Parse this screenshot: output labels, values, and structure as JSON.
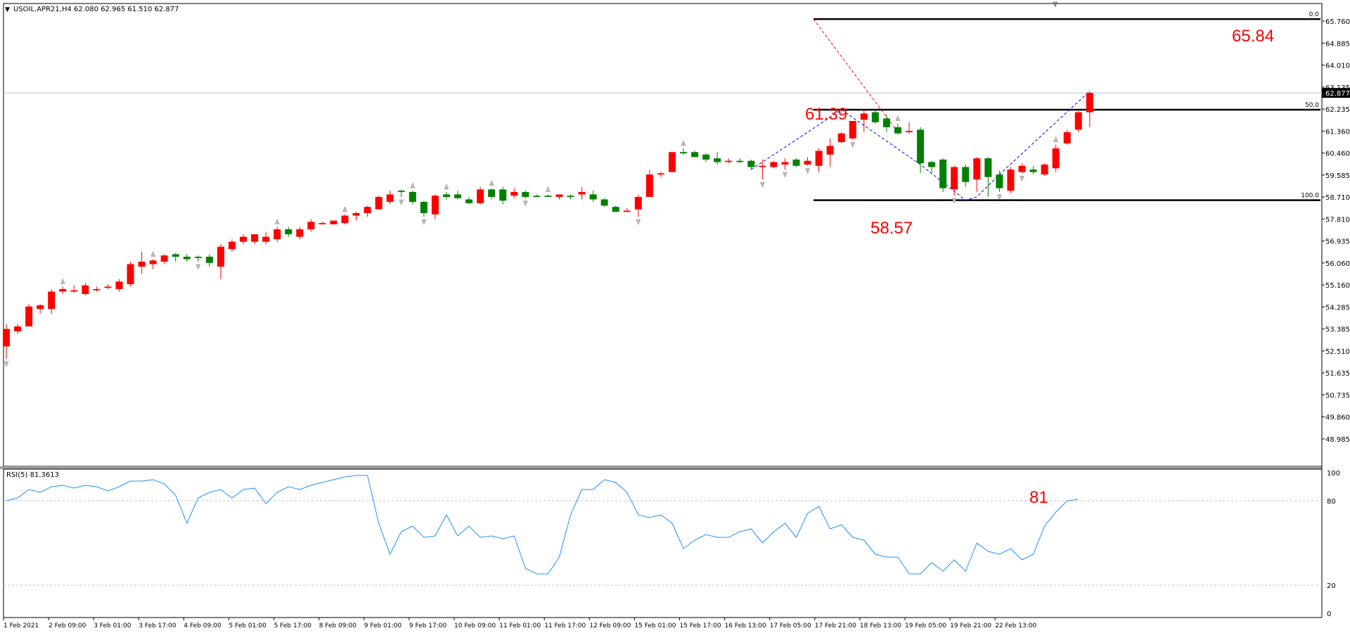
{
  "window": {
    "menu_icon": "triangle-down-icon",
    "header": "USOIL.APR21,H4  62.080 62.965 61.510 62.877"
  },
  "colors": {
    "bull": "#ff0000",
    "bear": "#008000",
    "wick": "#000000",
    "rsi_line": "#1e90ff",
    "bid_line": "#b0c4de",
    "annotation": "#ff0000",
    "fib_line": "#000000",
    "trend_blue": "#0000ff",
    "trend_red": "#ff0000"
  },
  "price_axis": {
    "labels": [
      "65.760",
      "64.885",
      "64.010",
      "63.135",
      "62.235",
      "61.360",
      "60.460",
      "59.585",
      "58.710",
      "57.810",
      "56.935",
      "56.060",
      "55.160",
      "54.285",
      "53.385",
      "52.510",
      "51.635",
      "50.735",
      "49.860",
      "48.985"
    ],
    "current_price": "62.877",
    "ylim": [
      48.985,
      65.76
    ]
  },
  "time_axis": {
    "labels": [
      "1 Feb 2021",
      "2 Feb 09:00",
      "3 Feb 01:00",
      "3 Feb 17:00",
      "4 Feb 09:00",
      "5 Feb 01:00",
      "5 Feb 17:00",
      "8 Feb 09:00",
      "9 Feb 01:00",
      "9 Feb 17:00",
      "10 Feb 09:00",
      "11 Feb 01:00",
      "11 Feb 17:00",
      "12 Feb 09:00",
      "15 Feb 01:00",
      "15 Feb 17:00",
      "16 Feb 13:00",
      "17 Feb 05:00",
      "17 Feb 21:00",
      "18 Feb 13:00",
      "19 Feb 05:00",
      "19 Feb 21:00",
      "22 Feb 13:00"
    ]
  },
  "fibonacci": {
    "levels": [
      {
        "label": "0.0",
        "price": 65.84
      },
      {
        "label": "50.0",
        "price": 62.2
      },
      {
        "label": "100.0",
        "price": 58.57
      }
    ]
  },
  "annotations": {
    "target": "65.84",
    "high": "61.39",
    "low": "58.57",
    "rsi_value": "81"
  },
  "rsi": {
    "header": "RSI(5) 81.3613",
    "levels": [
      "100",
      "80",
      "20",
      "0"
    ],
    "ylim": [
      0,
      100
    ],
    "values": [
      80,
      82,
      88,
      86,
      90,
      91,
      89,
      91,
      90,
      87,
      90,
      94,
      94,
      95,
      92,
      84,
      64,
      82,
      86,
      88,
      82,
      88,
      89,
      78,
      86,
      90,
      88,
      91,
      93,
      95,
      97,
      98,
      98,
      64,
      42,
      58,
      62,
      54,
      55,
      70,
      55,
      62,
      54,
      55,
      53,
      55,
      32,
      28,
      28,
      40,
      70,
      88,
      88,
      95,
      93,
      86,
      70,
      68,
      70,
      64,
      46,
      52,
      56,
      54,
      54,
      58,
      60,
      50,
      58,
      64,
      54,
      71,
      76,
      60,
      63,
      54,
      52,
      42,
      40,
      40,
      28,
      28,
      36,
      30,
      38,
      30,
      50,
      44,
      42,
      46,
      38,
      42,
      62,
      72,
      80,
      81
    ]
  },
  "chart_data": {
    "type": "candlestick",
    "title": "USOIL.APR21,H4",
    "ylim": [
      48.985,
      65.76
    ],
    "x": [
      "1 Feb 2021",
      "2 Feb 09:00",
      "3 Feb 01:00",
      "3 Feb 17:00",
      "4 Feb 09:00",
      "5 Feb 01:00",
      "5 Feb 17:00",
      "8 Feb 09:00",
      "9 Feb 01:00",
      "9 Feb 17:00",
      "10 Feb 09:00",
      "11 Feb 01:00",
      "11 Feb 17:00",
      "12 Feb 09:00",
      "15 Feb 01:00",
      "15 Feb 17:00",
      "16 Feb 13:00",
      "17 Feb 05:00",
      "17 Feb 21:00",
      "18 Feb 13:00",
      "19 Feb 05:00",
      "19 Feb 21:00",
      "22 Feb 13:00"
    ],
    "ohlc": [
      [
        52.7,
        53.6,
        52.2,
        53.4
      ],
      [
        53.3,
        53.6,
        53.2,
        53.5
      ],
      [
        53.5,
        54.4,
        53.5,
        54.3
      ],
      [
        54.2,
        54.4,
        54.0,
        54.35
      ],
      [
        54.2,
        55.0,
        54.0,
        54.9
      ],
      [
        54.9,
        55.1,
        54.8,
        55.0
      ],
      [
        54.9,
        55.15,
        54.85,
        54.95
      ],
      [
        54.8,
        55.25,
        54.75,
        55.15
      ],
      [
        54.95,
        55.1,
        54.9,
        55.0
      ],
      [
        55.05,
        55.2,
        55.0,
        55.1
      ],
      [
        55.0,
        55.4,
        54.9,
        55.3
      ],
      [
        55.2,
        56.1,
        55.1,
        56.0
      ],
      [
        55.9,
        56.5,
        55.6,
        56.1
      ],
      [
        56.0,
        56.2,
        55.8,
        56.15
      ],
      [
        56.1,
        56.4,
        56.0,
        56.35
      ],
      [
        56.4,
        56.45,
        56.1,
        56.3
      ],
      [
        56.3,
        56.4,
        56.1,
        56.2
      ],
      [
        56.3,
        56.35,
        56.1,
        56.25
      ],
      [
        56.3,
        56.4,
        55.9,
        56.05
      ],
      [
        55.9,
        56.8,
        55.4,
        56.7
      ],
      [
        56.6,
        57.0,
        56.5,
        56.9
      ],
      [
        56.9,
        57.2,
        56.8,
        57.1
      ],
      [
        56.9,
        57.2,
        56.8,
        57.2
      ],
      [
        56.9,
        57.3,
        56.8,
        57.1
      ],
      [
        57.0,
        57.5,
        56.9,
        57.4
      ],
      [
        57.4,
        57.5,
        57.1,
        57.2
      ],
      [
        57.1,
        57.5,
        57.0,
        57.4
      ],
      [
        57.4,
        57.8,
        57.3,
        57.7
      ],
      [
        57.6,
        57.7,
        57.6,
        57.65
      ],
      [
        57.6,
        57.75,
        57.6,
        57.75
      ],
      [
        57.65,
        58.0,
        57.6,
        57.95
      ],
      [
        57.95,
        58.1,
        57.75,
        58.05
      ],
      [
        58.05,
        58.35,
        57.9,
        58.3
      ],
      [
        58.2,
        58.75,
        58.2,
        58.7
      ],
      [
        58.5,
        58.95,
        58.4,
        58.8
      ],
      [
        58.95,
        59.0,
        58.7,
        58.9
      ],
      [
        58.9,
        58.95,
        58.4,
        58.5
      ],
      [
        58.5,
        58.55,
        57.9,
        58.05
      ],
      [
        58.0,
        58.8,
        57.8,
        58.75
      ],
      [
        58.8,
        58.9,
        58.6,
        58.7
      ],
      [
        58.8,
        58.95,
        58.6,
        58.65
      ],
      [
        58.6,
        58.7,
        58.4,
        58.45
      ],
      [
        58.45,
        59.1,
        58.4,
        59.0
      ],
      [
        59.0,
        59.05,
        58.6,
        58.7
      ],
      [
        59.0,
        59.1,
        58.4,
        58.55
      ],
      [
        58.75,
        59.05,
        58.65,
        58.9
      ],
      [
        58.9,
        58.95,
        58.65,
        58.7
      ],
      [
        58.75,
        58.8,
        58.7,
        58.7
      ],
      [
        58.75,
        58.8,
        58.7,
        58.7
      ],
      [
        58.7,
        58.8,
        58.6,
        58.8
      ],
      [
        58.75,
        58.8,
        58.6,
        58.7
      ],
      [
        58.8,
        59.1,
        58.6,
        58.9
      ],
      [
        58.8,
        58.95,
        58.5,
        58.6
      ],
      [
        58.6,
        58.65,
        58.3,
        58.35
      ],
      [
        58.3,
        58.35,
        58.1,
        58.1
      ],
      [
        58.1,
        58.25,
        58.1,
        58.15
      ],
      [
        58.2,
        58.8,
        57.9,
        58.7
      ],
      [
        58.7,
        59.8,
        58.7,
        59.6
      ],
      [
        59.6,
        59.7,
        59.5,
        59.65
      ],
      [
        59.7,
        60.5,
        59.7,
        60.5
      ],
      [
        60.5,
        60.65,
        60.4,
        60.45
      ],
      [
        60.5,
        60.55,
        60.3,
        60.3
      ],
      [
        60.4,
        60.45,
        60.1,
        60.2
      ],
      [
        60.25,
        60.5,
        60.0,
        60.1
      ],
      [
        60.1,
        60.25,
        60.05,
        60.15
      ],
      [
        60.15,
        60.25,
        60.05,
        60.1
      ],
      [
        60.15,
        60.2,
        59.8,
        59.9
      ],
      [
        59.9,
        60.2,
        59.4,
        59.95
      ],
      [
        59.9,
        60.15,
        59.85,
        60.1
      ],
      [
        60.0,
        60.25,
        59.8,
        60.1
      ],
      [
        60.2,
        60.25,
        59.9,
        59.95
      ],
      [
        60.0,
        60.3,
        59.95,
        60.15
      ],
      [
        59.95,
        60.65,
        59.7,
        60.55
      ],
      [
        60.4,
        61.05,
        59.9,
        60.75
      ],
      [
        60.9,
        61.3,
        60.85,
        61.25
      ],
      [
        61.05,
        61.6,
        61.0,
        61.75
      ],
      [
        61.8,
        62.2,
        61.3,
        62.05
      ],
      [
        62.1,
        62.2,
        61.65,
        61.7
      ],
      [
        61.85,
        62.0,
        61.3,
        61.5
      ],
      [
        61.5,
        61.65,
        61.2,
        61.25
      ],
      [
        61.3,
        61.7,
        61.25,
        61.35
      ],
      [
        61.4,
        61.5,
        59.65,
        60.05
      ],
      [
        60.1,
        60.15,
        59.7,
        59.9
      ],
      [
        60.2,
        60.25,
        58.9,
        59.05
      ],
      [
        59.0,
        59.95,
        58.75,
        59.9
      ],
      [
        59.9,
        60.0,
        59.1,
        59.3
      ],
      [
        59.4,
        60.3,
        58.9,
        60.25
      ],
      [
        60.25,
        60.3,
        58.7,
        59.5
      ],
      [
        59.6,
        59.75,
        58.9,
        59.05
      ],
      [
        58.95,
        59.9,
        58.85,
        59.8
      ],
      [
        59.7,
        60.05,
        59.65,
        59.95
      ],
      [
        59.8,
        59.95,
        59.6,
        59.7
      ],
      [
        59.6,
        60.05,
        59.55,
        60.0
      ],
      [
        59.85,
        60.8,
        59.7,
        60.65
      ],
      [
        60.85,
        61.4,
        60.8,
        61.3
      ],
      [
        61.4,
        62.15,
        61.3,
        62.1
      ],
      [
        62.1,
        62.95,
        61.5,
        62.88
      ]
    ]
  }
}
